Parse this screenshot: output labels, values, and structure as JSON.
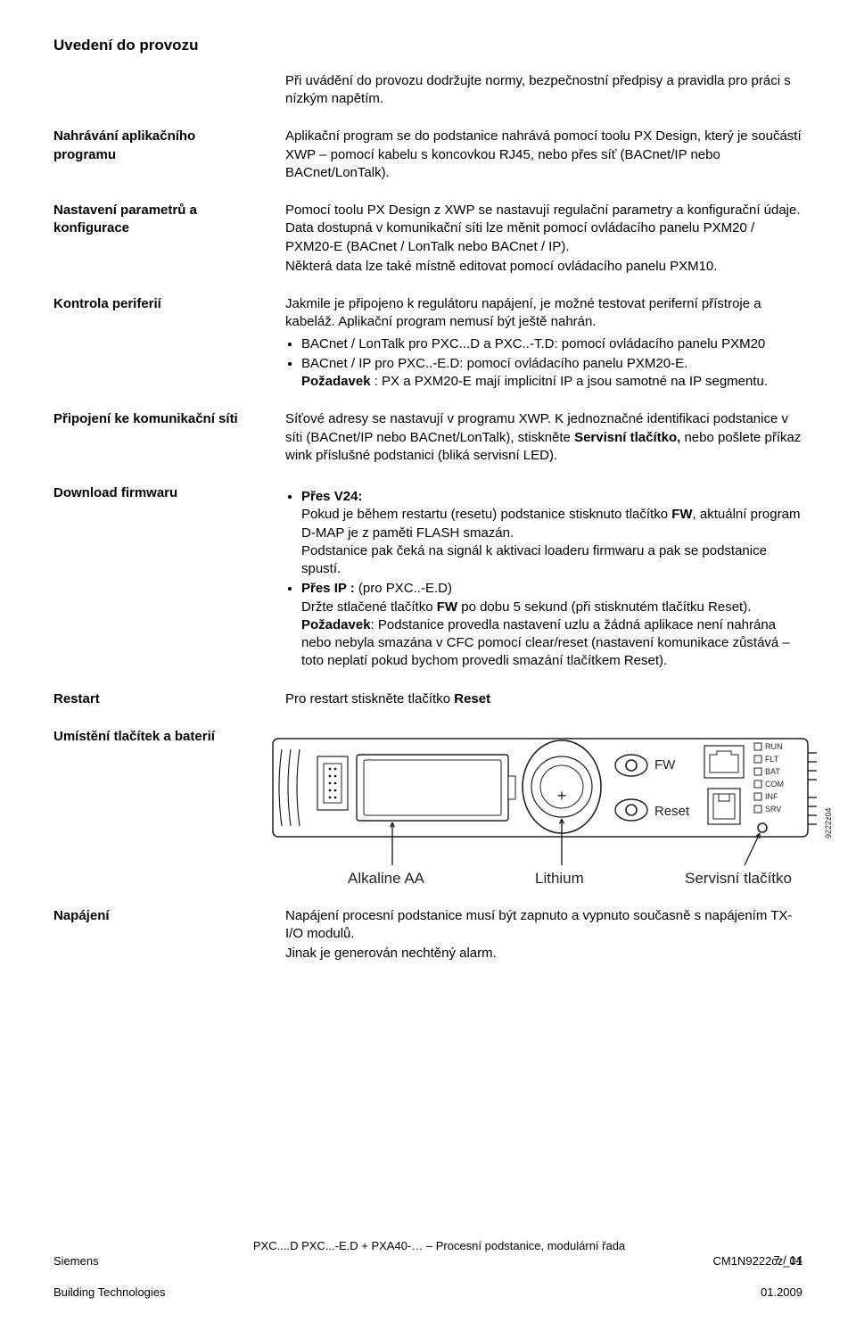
{
  "title": "Uvedení do provozu",
  "intro": "Při uvádění do provozu dodržujte normy, bezpečnostní předpisy a pravidla pro práci s nízkým napětím.",
  "s1": {
    "label": "Nahrávání aplikačního programu",
    "text": "Aplikační program se do podstanice nahrává pomocí toolu PX Design, který je součástí XWP – pomocí kabelu s koncovkou RJ45, nebo přes síť (BACnet/IP nebo BACnet/LonTalk)."
  },
  "s2": {
    "label": "Nastavení parametrů a konfigurace",
    "text1": "Pomocí toolu PX Design z XWP se nastavují regulační parametry a konfigurační údaje. Data dostupná v komunikační síti lze měnit pomocí ovládacího panelu PXM20 / PXM20-E (BACnet / LonTalk nebo BACnet / IP).",
    "text2": "Některá data lze také místně editovat pomocí ovládacího panelu PXM10."
  },
  "s3": {
    "label": "Kontrola periferií",
    "text": "Jakmile je připojeno k regulátoru napájení, je možné testovat periferní přístroje a kabeláž. Aplikační program nemusí být ještě nahrán.",
    "b1": "BACnet / LonTalk pro PXC...D a PXC..-T.D: pomocí ovládacího panelu PXM20",
    "b2": "BACnet / IP pro PXC..-E.D: pomocí ovládacího panelu PXM20-E.",
    "req_label": "Požadavek",
    "req": " : PX a PXM20-E mají implicitní IP a jsou samotné na IP segmentu."
  },
  "s4": {
    "label": "Připojení ke komunikační síti",
    "text1": "Síťové adresy se nastavují v programu XWP. K jednoznačné identifikaci podstanice v síti (BACnet/IP nebo BACnet/LonTalk), stiskněte ",
    "bold1": "Servisní tlačítko,",
    "text2": " nebo pošlete příkaz wink  příslušné podstanici (bliká servisní LED)."
  },
  "s5": {
    "label": "Download firmwaru",
    "b1_label": "Přes V24:",
    "b1_t1": "Pokud je během restartu (resetu) podstanice stisknuto tlačítko ",
    "b1_fw": "FW",
    "b1_t2": ", aktuální program D-MAP je z paměti FLASH smazán.",
    "b1_t3": "Podstanice pak čeká na signál k aktivaci loaderu firmwaru a pak se podstanice spustí.",
    "b2_label": "Přes IP :",
    "b2_suffix": " (pro PXC..-E.D)",
    "b2_t1": "Držte stlačené tlačítko ",
    "b2_fw": "FW",
    "b2_t2": " po dobu 5 sekund (při stisknutém tlačítku Reset).",
    "b2_req_label": "Požadavek",
    "b2_req": ": Podstanice provedla nastavení uzlu a žádná aplikace není nahrána nebo nebyla smazána v CFC pomocí clear/reset (nastavení komunikace zůstává – toto neplatí pokud bychom provedli smazání tlačítkem Reset)."
  },
  "s6": {
    "label": "Restart",
    "t1": "Pro restart stiskněte tlačítko ",
    "bold": "Reset"
  },
  "s7": {
    "label": "Umístění tlačítek a baterií",
    "diagram": {
      "fw": "FW",
      "reset": "Reset",
      "leds": [
        "RUN",
        "FLT",
        "BAT",
        "COM",
        "INF",
        "SRV"
      ],
      "alkaline": "Alkaline AA",
      "lithium": "Lithium",
      "service": "Servisní tlačítko",
      "code": "9222z04",
      "stroke": "#231f20",
      "fill": "#ffffff"
    }
  },
  "s8": {
    "label": "Napájení",
    "t1": "Napájení procesní podstanice musí být zapnuto a vypnuto současně s napájením TX-I/O modulů.",
    "t2": "Jinak je generován nechtěný alarm."
  },
  "page_indicator": "7 / 14",
  "footer": {
    "left1": "Siemens",
    "left2": "Building Technologies",
    "center": "PXC....D PXC...-E.D + PXA40-… – Procesní podstanice, modulární řada",
    "right1": "CM1N9222cz_01",
    "right2": "01.2009"
  }
}
